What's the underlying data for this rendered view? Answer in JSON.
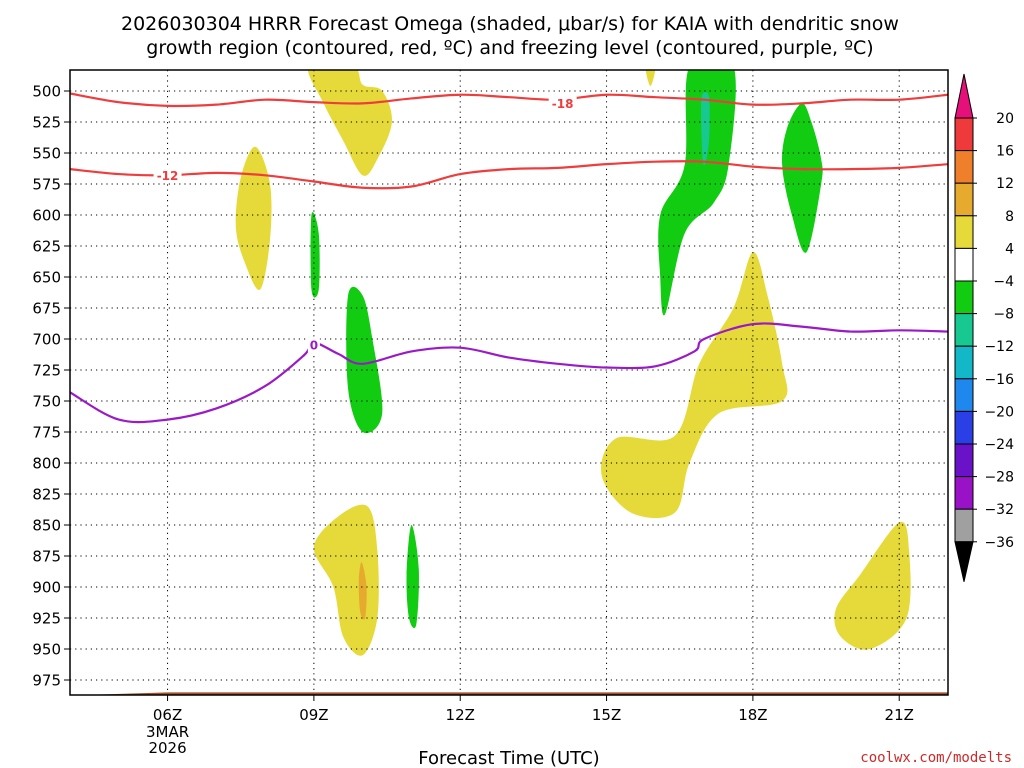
{
  "chart_data": {
    "type": "contour",
    "title_lines": [
      "2026030304 HRRR Forecast Omega (shaded, μbar/s) for KAIA with dendritic snow",
      "growth region (contoured, red, ºC) and freezing level (contoured, purple, ºC)"
    ],
    "xlabel": "Forecast Time (UTC)",
    "credit": "coolwx.com/modelts",
    "x_ticks": [
      {
        "hour": 6,
        "label": "06Z",
        "sub": [
          "3MAR",
          "2026"
        ]
      },
      {
        "hour": 9,
        "label": "09Z"
      },
      {
        "hour": 12,
        "label": "12Z"
      },
      {
        "hour": 15,
        "label": "15Z"
      },
      {
        "hour": 18,
        "label": "18Z"
      },
      {
        "hour": 21,
        "label": "21Z"
      }
    ],
    "xlim_hours": [
      4,
      22
    ],
    "y_ticks": [
      500,
      525,
      550,
      575,
      600,
      625,
      650,
      675,
      700,
      725,
      750,
      775,
      800,
      825,
      850,
      875,
      900,
      925,
      950,
      975
    ],
    "ylim_mb": [
      480,
      990
    ],
    "colorbar": {
      "labels": [
        "20",
        "16",
        "12",
        "8",
        "4",
        "−4",
        "−8",
        "−12",
        "−16",
        "−20",
        "−24",
        "−28",
        "−32",
        "−36"
      ],
      "bins": [
        {
          "color": "#ee3a3a"
        },
        {
          "color": "#f07f2c"
        },
        {
          "color": "#e6ab2e"
        },
        {
          "color": "#e6da3a"
        },
        {
          "color": "#ffffff"
        },
        {
          "color": "#12cc12"
        },
        {
          "color": "#17c890"
        },
        {
          "color": "#13b8c8"
        },
        {
          "color": "#1f88ee"
        },
        {
          "color": "#2a40e6"
        },
        {
          "color": "#6a12c8"
        },
        {
          "color": "#9a12c8"
        },
        {
          "color": "#a0a0a0"
        }
      ],
      "top_arrow_color": "#e6107a",
      "bottom_arrow_color": "#000000"
    },
    "contours": [
      {
        "name": "-18",
        "color": "#ef3c3c",
        "label": "-18",
        "label_at": {
          "t": 14.1,
          "p": 510
        },
        "points": [
          [
            4,
            502
          ],
          [
            5,
            509
          ],
          [
            6,
            512
          ],
          [
            7,
            511
          ],
          [
            8,
            507
          ],
          [
            9,
            509
          ],
          [
            10,
            510
          ],
          [
            11,
            506
          ],
          [
            12,
            503
          ],
          [
            13,
            505
          ],
          [
            14,
            507
          ],
          [
            15,
            503
          ],
          [
            16,
            505
          ],
          [
            17,
            507
          ],
          [
            18,
            511
          ],
          [
            19,
            510
          ],
          [
            20,
            507
          ],
          [
            21,
            507
          ],
          [
            22,
            503
          ]
        ]
      },
      {
        "name": "-12",
        "color": "#ef3c3c",
        "label": "-12",
        "label_at": {
          "t": 6.0,
          "p": 568
        },
        "points": [
          [
            4,
            563
          ],
          [
            5,
            567
          ],
          [
            6,
            568
          ],
          [
            7,
            566
          ],
          [
            8,
            568
          ],
          [
            9,
            573
          ],
          [
            10,
            578
          ],
          [
            11,
            577
          ],
          [
            12,
            567
          ],
          [
            13,
            563
          ],
          [
            14,
            562
          ],
          [
            15,
            559
          ],
          [
            16,
            557
          ],
          [
            17,
            557
          ],
          [
            18,
            561
          ],
          [
            19,
            563
          ],
          [
            20,
            563
          ],
          [
            21,
            562
          ],
          [
            22,
            559
          ]
        ]
      },
      {
        "name": "0",
        "color": "#9a1ac8",
        "label": "0",
        "label_at": {
          "t": 9.0,
          "p": 705
        },
        "points": [
          [
            4,
            743
          ],
          [
            5,
            765
          ],
          [
            6,
            765
          ],
          [
            7,
            756
          ],
          [
            8,
            738
          ],
          [
            8.8,
            713
          ],
          [
            9.0,
            703
          ],
          [
            9.5,
            712
          ],
          [
            10,
            720
          ],
          [
            11,
            710
          ],
          [
            12,
            707
          ],
          [
            13,
            715
          ],
          [
            14,
            720
          ],
          [
            15,
            723
          ],
          [
            16,
            722
          ],
          [
            16.8,
            710
          ],
          [
            17,
            700
          ],
          [
            18,
            688
          ],
          [
            19,
            690
          ],
          [
            20,
            694
          ],
          [
            21,
            693
          ],
          [
            22,
            694
          ]
        ]
      }
    ],
    "shaded_regions": [
      {
        "name": "yellow-9z-10z-top",
        "color": "#e6da3a",
        "points": [
          [
            8.9,
            480
          ],
          [
            9.8,
            480
          ],
          [
            10.0,
            495
          ],
          [
            10.4,
            500
          ],
          [
            10.6,
            525
          ],
          [
            10.3,
            555
          ],
          [
            10.0,
            568
          ],
          [
            9.6,
            540
          ],
          [
            9.2,
            510
          ],
          [
            8.9,
            480
          ]
        ]
      },
      {
        "name": "yellow-near-15z-top",
        "color": "#e6da3a",
        "points": [
          [
            15.8,
            480
          ],
          [
            16.0,
            480
          ],
          [
            15.9,
            496
          ],
          [
            15.8,
            480
          ]
        ]
      },
      {
        "name": "green-17z-tall",
        "color": "#12cc12",
        "points": [
          [
            16.7,
            480
          ],
          [
            17.6,
            480
          ],
          [
            17.5,
            560
          ],
          [
            17.2,
            590
          ],
          [
            16.6,
            615
          ],
          [
            16.2,
            680
          ],
          [
            16.1,
            650
          ],
          [
            16.1,
            600
          ],
          [
            16.6,
            560
          ],
          [
            16.7,
            480
          ]
        ]
      },
      {
        "name": "teal-17z-core",
        "color": "#17c890",
        "points": [
          [
            16.95,
            505
          ],
          [
            17.1,
            505
          ],
          [
            17.1,
            540
          ],
          [
            17.0,
            560
          ],
          [
            16.95,
            540
          ],
          [
            16.95,
            505
          ]
        ]
      },
      {
        "name": "green-19z",
        "color": "#12cc12",
        "points": [
          [
            19.0,
            510
          ],
          [
            19.2,
            525
          ],
          [
            19.4,
            555
          ],
          [
            19.4,
            575
          ],
          [
            19.1,
            630
          ],
          [
            18.8,
            600
          ],
          [
            18.6,
            560
          ],
          [
            18.7,
            530
          ],
          [
            19.0,
            510
          ]
        ]
      },
      {
        "name": "yellow-07z-08z",
        "color": "#e6da3a",
        "points": [
          [
            7.8,
            545
          ],
          [
            8.1,
            575
          ],
          [
            8.1,
            620
          ],
          [
            7.9,
            660
          ],
          [
            7.6,
            640
          ],
          [
            7.4,
            610
          ],
          [
            7.5,
            570
          ],
          [
            7.8,
            545
          ]
        ]
      },
      {
        "name": "green-09z-small",
        "color": "#12cc12",
        "points": [
          [
            8.95,
            600
          ],
          [
            9.1,
            615
          ],
          [
            9.1,
            660
          ],
          [
            8.95,
            660
          ],
          [
            8.95,
            600
          ]
        ]
      },
      {
        "name": "green-10z-tall",
        "color": "#12cc12",
        "points": [
          [
            9.7,
            665
          ],
          [
            10.0,
            665
          ],
          [
            10.2,
            700
          ],
          [
            10.4,
            760
          ],
          [
            10.0,
            775
          ],
          [
            9.7,
            740
          ],
          [
            9.7,
            665
          ]
        ]
      },
      {
        "name": "yellow-15z-18z",
        "color": "#e6da3a",
        "points": [
          [
            18.0,
            630
          ],
          [
            18.3,
            665
          ],
          [
            18.6,
            720
          ],
          [
            18.6,
            750
          ],
          [
            17.3,
            760
          ],
          [
            16.7,
            800
          ],
          [
            16.4,
            840
          ],
          [
            15.5,
            840
          ],
          [
            14.9,
            810
          ],
          [
            15.2,
            780
          ],
          [
            16.4,
            778
          ],
          [
            16.9,
            720
          ],
          [
            17.6,
            675
          ],
          [
            18.0,
            630
          ]
        ]
      },
      {
        "name": "yellow-09z-10z-bottom",
        "color": "#e6da3a",
        "points": [
          [
            9.0,
            868
          ],
          [
            9.5,
            843
          ],
          [
            10.1,
            835
          ],
          [
            10.3,
            870
          ],
          [
            10.3,
            925
          ],
          [
            10.0,
            955
          ],
          [
            9.6,
            940
          ],
          [
            9.4,
            900
          ],
          [
            9.0,
            868
          ]
        ]
      },
      {
        "name": "orange-10z-core",
        "color": "#e6ab2e",
        "points": [
          [
            9.98,
            880
          ],
          [
            10.08,
            900
          ],
          [
            10.05,
            925
          ],
          [
            9.95,
            920
          ],
          [
            9.92,
            895
          ],
          [
            9.98,
            880
          ]
        ]
      },
      {
        "name": "green-11z-small",
        "color": "#12cc12",
        "points": [
          [
            11.0,
            850
          ],
          [
            11.15,
            885
          ],
          [
            11.1,
            930
          ],
          [
            10.95,
            925
          ],
          [
            10.9,
            890
          ],
          [
            11.0,
            850
          ]
        ]
      },
      {
        "name": "yellow-21z",
        "color": "#e6da3a",
        "points": [
          [
            21.0,
            848
          ],
          [
            21.2,
            870
          ],
          [
            21.15,
            925
          ],
          [
            20.4,
            950
          ],
          [
            19.8,
            940
          ],
          [
            19.7,
            918
          ],
          [
            20.2,
            890
          ],
          [
            21.0,
            848
          ]
        ]
      }
    ],
    "terrain": {
      "color": "#a0522d",
      "pressure_mb": 985
    }
  }
}
